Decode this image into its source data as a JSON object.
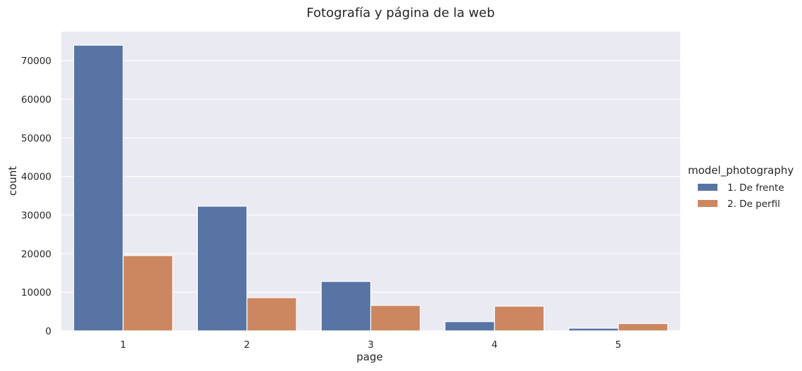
{
  "chart_data": {
    "type": "bar",
    "title": "Fotografía y página de la web",
    "xlabel": "page",
    "ylabel": "count",
    "categories": [
      "1",
      "2",
      "3",
      "4",
      "5"
    ],
    "ylim": [
      0,
      77500
    ],
    "yticks": [
      0,
      10000,
      20000,
      30000,
      40000,
      50000,
      60000,
      70000
    ],
    "grid": true,
    "legend": {
      "title": "model_photography",
      "placement": "right"
    },
    "series": [
      {
        "name": "1. De frente",
        "color": "#5874a4",
        "values": [
          74000,
          32300,
          12800,
          2400,
          700
        ]
      },
      {
        "name": "2. De perfil",
        "color": "#cd8760",
        "values": [
          19500,
          8600,
          6600,
          6400,
          1900
        ]
      }
    ],
    "plot_background": "#eaeaf2"
  }
}
